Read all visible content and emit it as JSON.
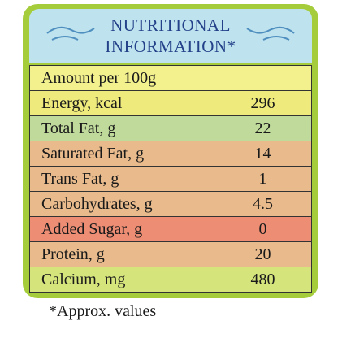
{
  "header": {
    "title_lines": [
      "NUTRITIONAL",
      "INFORMATION*"
    ]
  },
  "table": {
    "rows": [
      [
        "Amount per 100g"
      ],
      [
        "Energy, kcal",
        "296"
      ],
      [
        "Total Fat, g",
        "22"
      ],
      [
        "Saturated Fat, g",
        "14"
      ],
      [
        "Trans Fat, g",
        "1"
      ],
      [
        "Carbohydrates, g",
        "4.5"
      ],
      [
        "Added Sugar, g",
        "0"
      ],
      [
        "Protein, g",
        "20"
      ],
      [
        "Calcium, mg",
        "480"
      ]
    ]
  },
  "footnote": "*Approx. values"
}
